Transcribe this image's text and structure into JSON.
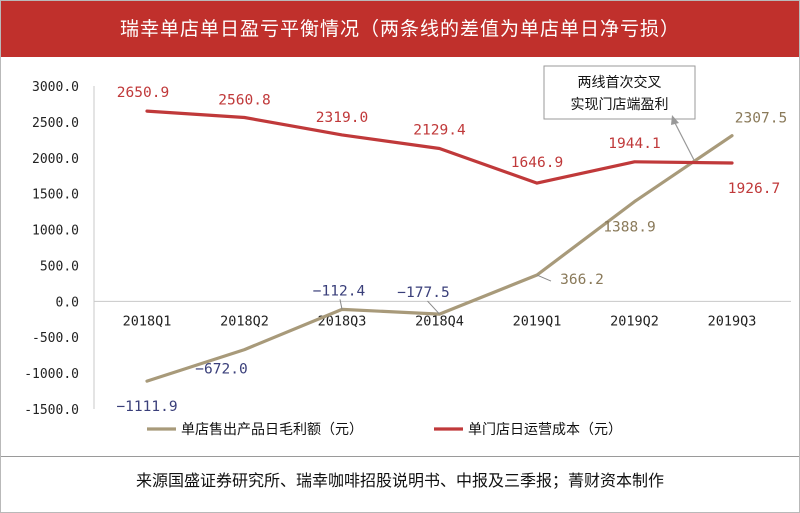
{
  "title": "瑞幸单店单日盈亏平衡情况（两条线的差值为单店单日净亏损）",
  "source": "来源国盛证券研究所、瑞幸咖啡招股说明书、中报及三季报；菁财资本制作",
  "chart_data": {
    "type": "line",
    "title": "瑞幸单店单日盈亏平衡情况（两条线的差值为单店单日净亏损）",
    "categories": [
      "2018Q1",
      "2018Q2",
      "2018Q3",
      "2018Q4",
      "2019Q1",
      "2019Q2",
      "2019Q3"
    ],
    "ylim": [
      -1500,
      3000
    ],
    "yticks": [
      "3000.0",
      "2500.0",
      "2000.0",
      "1500.0",
      "1000.0",
      "500.0",
      "0.0",
      "-500.0",
      "-1000.0",
      "-1500.0"
    ],
    "grid": false,
    "legend_position": "bottom",
    "series": [
      {
        "name": "单店售出产品日毛利额（元）",
        "color": "#a89a7a",
        "values": [
          -1111.9,
          -672.0,
          -112.4,
          -177.5,
          366.2,
          1388.9,
          2307.5
        ],
        "labels": [
          "−1111.9",
          "−672.0",
          "−112.4",
          "−177.5",
          "366.2",
          "1388.9",
          "2307.5"
        ],
        "label_color": "#3a3f7a"
      },
      {
        "name": "单门店日运营成本（元）",
        "color": "#c0393a",
        "values": [
          2650.9,
          2560.8,
          2319.0,
          2129.4,
          1646.9,
          1944.1,
          1926.7
        ],
        "labels": [
          "2650.9",
          "2560.8",
          "2319.0",
          "2129.4",
          "1646.9",
          "1944.1",
          "1926.7"
        ],
        "label_color": "#c0393a"
      }
    ],
    "annotation": {
      "lines": [
        "两线首次交叉",
        "实现门店端盈利"
      ]
    }
  }
}
